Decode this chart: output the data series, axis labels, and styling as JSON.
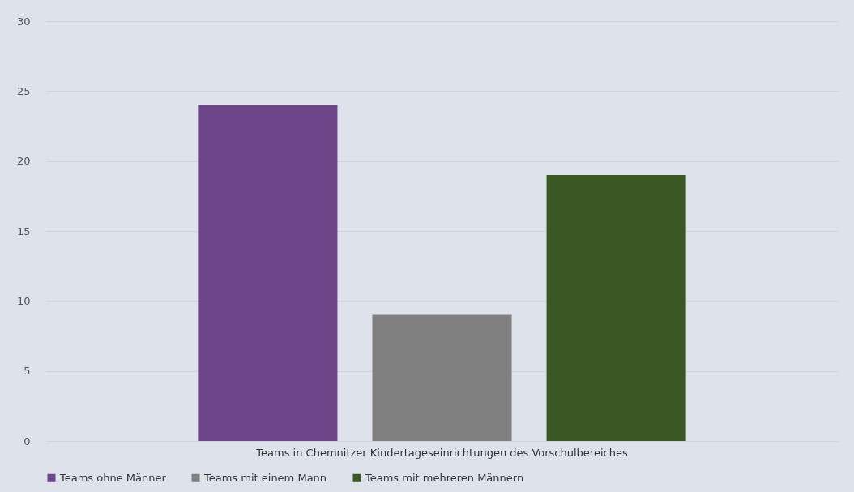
{
  "chart_data": {
    "type": "bar",
    "categories": [
      "Teams in Chemnitzer Kindertageseinrichtungen des Vorschulbereiches"
    ],
    "series": [
      {
        "name": "Teams ohne Männer",
        "color": "#6d4589",
        "values": [
          24
        ]
      },
      {
        "name": "Teams mit einem Mann",
        "color": "#808080",
        "values": [
          9
        ]
      },
      {
        "name": "Teams mit mehreren Männern",
        "color": "#3a5724",
        "values": [
          19
        ]
      }
    ],
    "ylim": [
      0,
      30
    ],
    "yticks": [
      0,
      5,
      10,
      15,
      20,
      25,
      30
    ],
    "grid": "y",
    "legend": "bottom"
  }
}
